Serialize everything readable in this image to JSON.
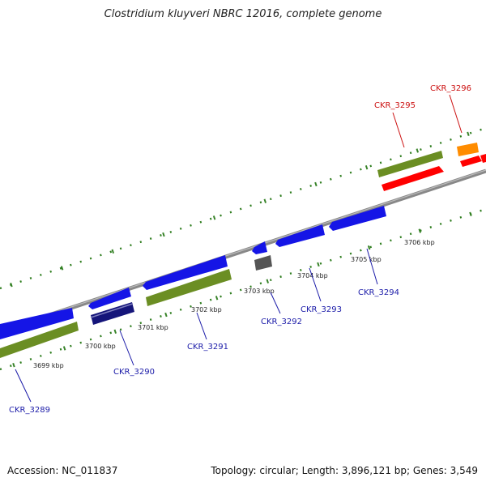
{
  "title": "Clostridium kluyveri NBRC 12016, complete genome",
  "footer": {
    "accession_label": "Accession:",
    "accession": "NC_011837",
    "summary": "Topology: circular; Length: 3,896,121 bp; Genes: 3,549"
  },
  "colors": {
    "backbone": "#8a8a8a",
    "tick_marks": "#2e7d1e",
    "forward_label": "#cc1111",
    "reverse_label": "#1a1aa8",
    "blue_gene": "#1515e6",
    "dark_blue_gene": "#15157a",
    "olive_gene": "#6b8e23",
    "gray_gene": "#555555",
    "red_gene": "#ff0000",
    "orange_gene": "#ff8c00"
  },
  "ticks": [
    "3699 kbp",
    "3700 kbp",
    "3701 kbp",
    "3702 kbp",
    "3703 kbp",
    "3704 kbp",
    "3705 kbp",
    "3706 kbp"
  ],
  "genes": [
    {
      "label": "CKR_3289",
      "strand": "reverse"
    },
    {
      "label": "CKR_3290",
      "strand": "reverse"
    },
    {
      "label": "CKR_3291",
      "strand": "reverse"
    },
    {
      "label": "CKR_3292",
      "strand": "reverse"
    },
    {
      "label": "CKR_3293",
      "strand": "reverse"
    },
    {
      "label": "CKR_3294",
      "strand": "reverse"
    },
    {
      "label": "CKR_3295",
      "strand": "forward"
    },
    {
      "label": "CKR_3296",
      "strand": "forward"
    }
  ]
}
